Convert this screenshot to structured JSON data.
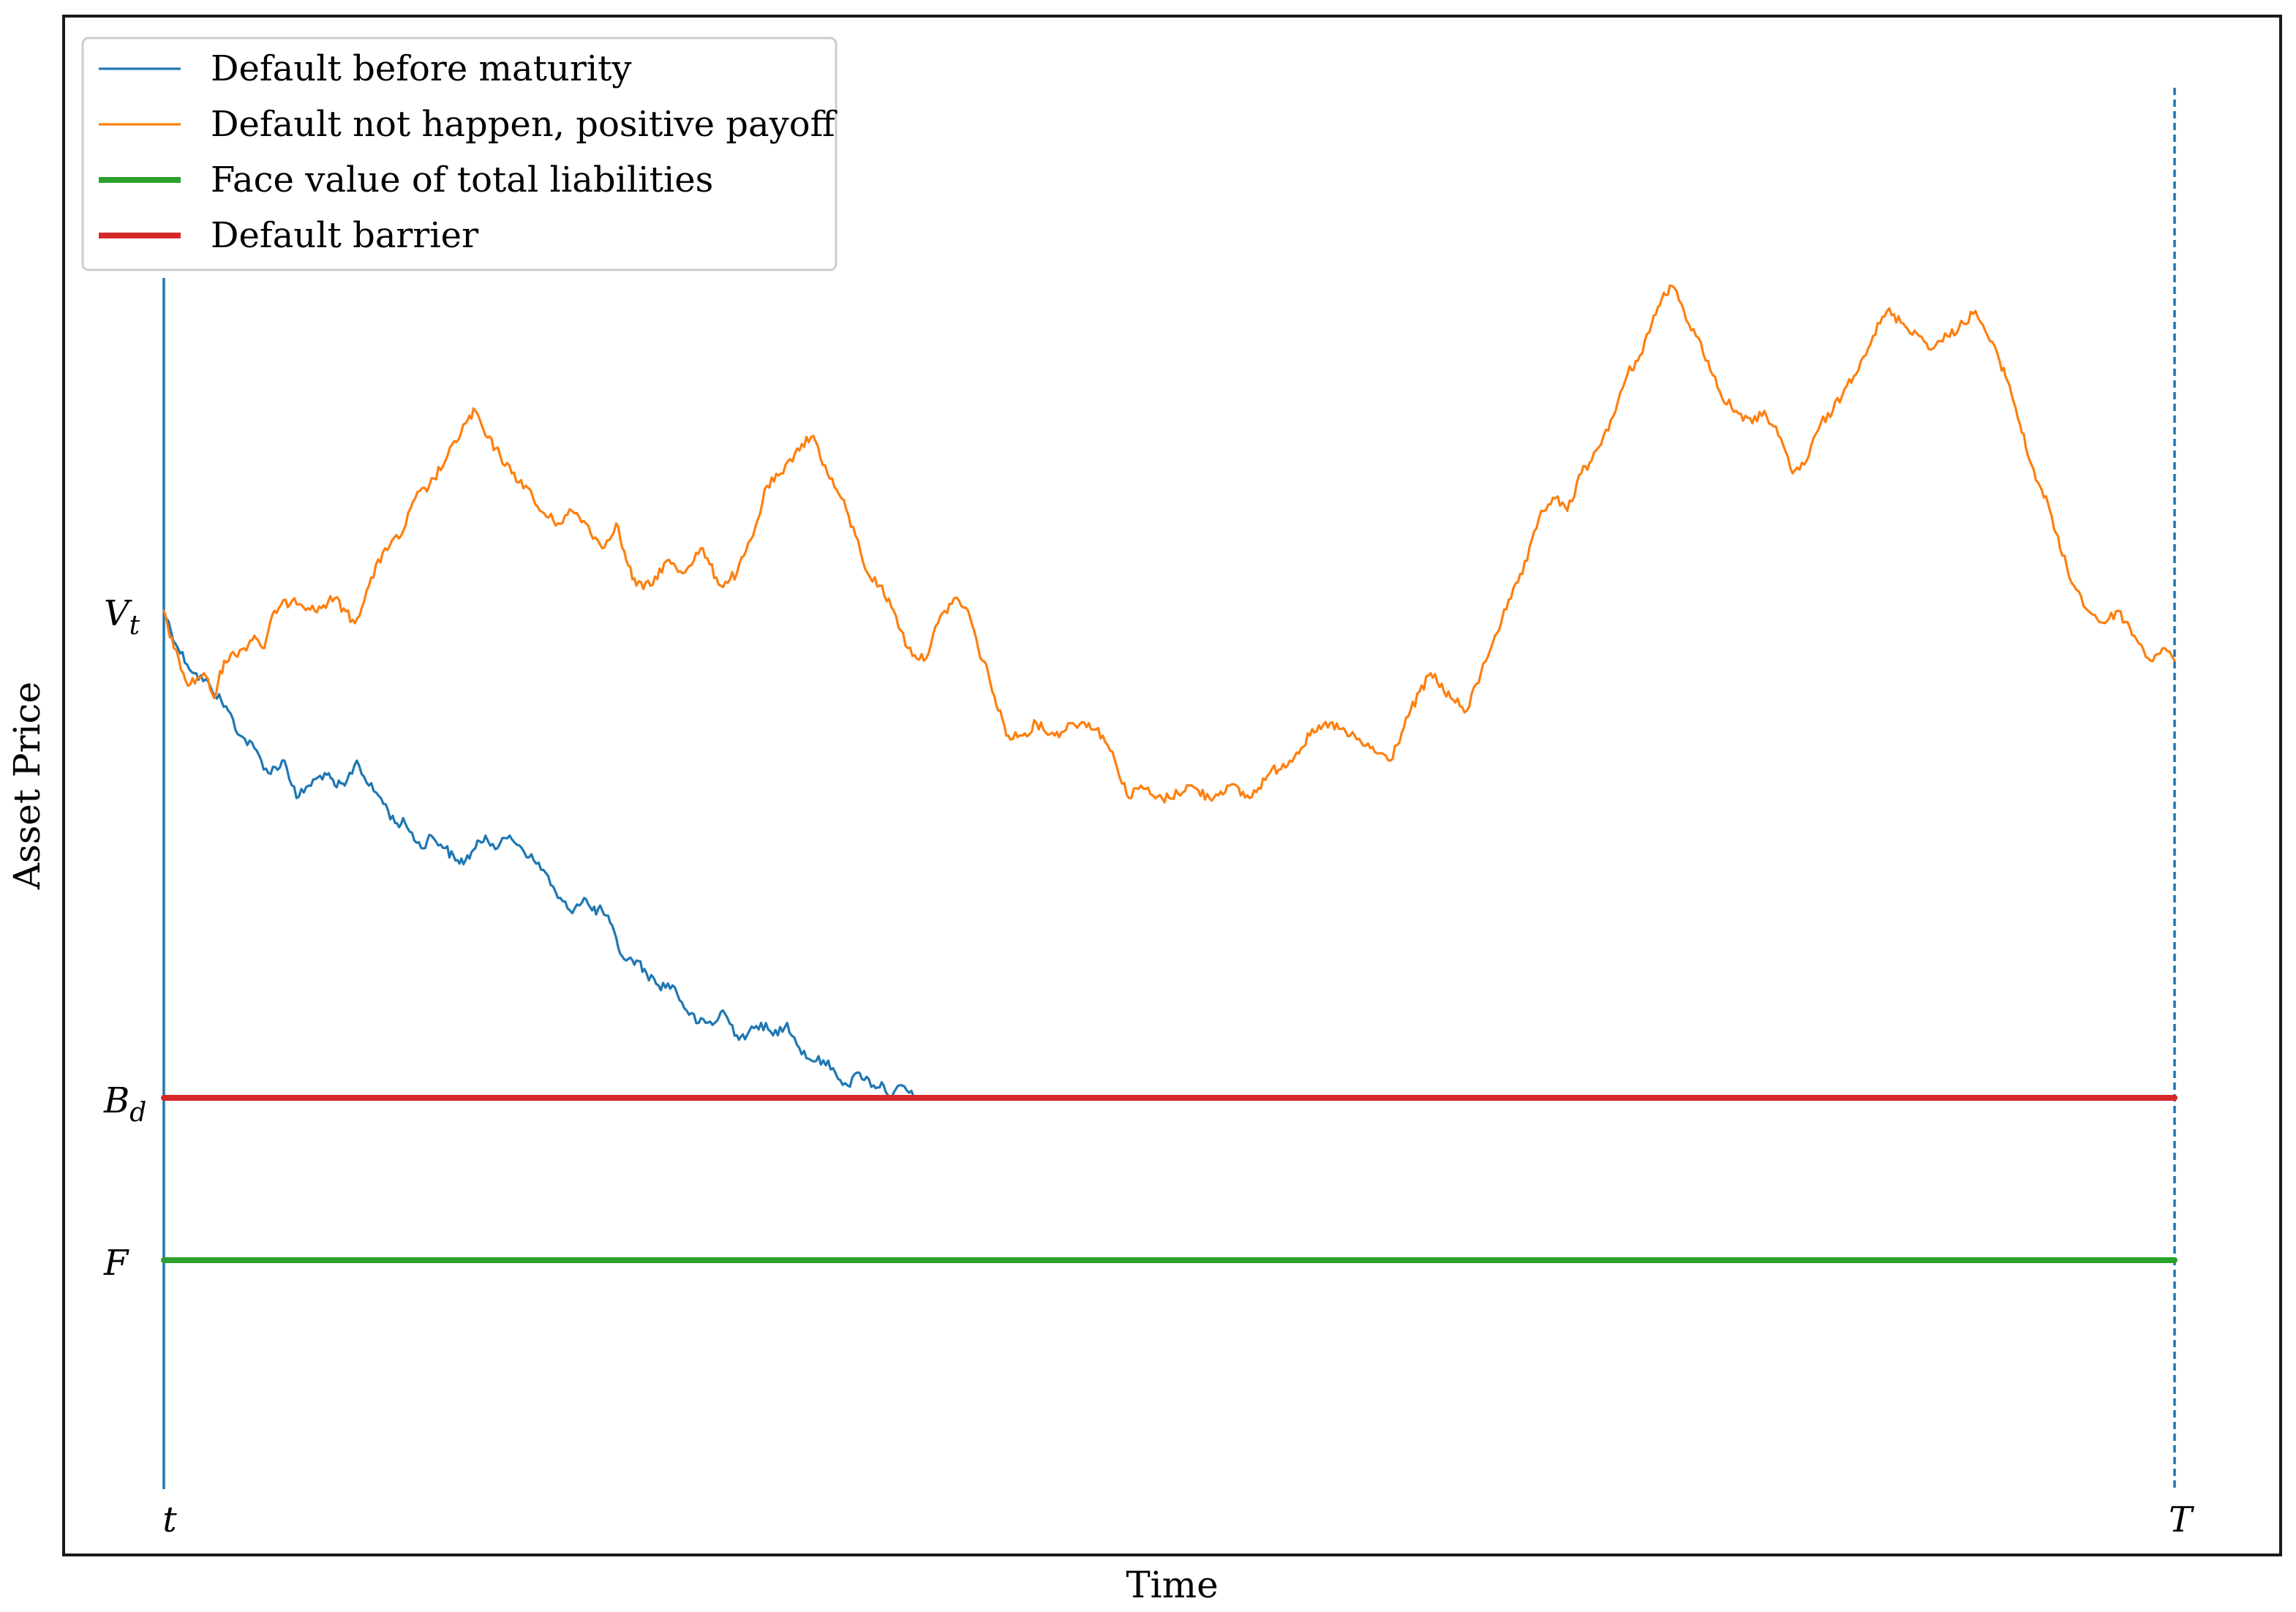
{
  "chart_data": {
    "type": "line",
    "title": "",
    "xlabel": "Time",
    "ylabel": "Asset Price",
    "xlim": [
      0,
      100
    ],
    "ylim": [
      0,
      100
    ],
    "grid": false,
    "legend_position": "top-left",
    "x_ticks": [
      {
        "value": 0,
        "label": "t"
      },
      {
        "value": 100,
        "label": "T"
      }
    ],
    "y_ticks": [
      {
        "value": 66,
        "label": "V",
        "sub": "t"
      },
      {
        "value": 27,
        "label": "B",
        "sub": "d"
      },
      {
        "value": 14,
        "label": "F",
        "sub": ""
      }
    ],
    "series": [
      {
        "name": "Default before maturity",
        "color": "#1f77b4",
        "style": "thin",
        "points": [
          [
            0,
            66
          ],
          [
            0.7,
            63
          ],
          [
            1.5,
            61
          ],
          [
            2.3,
            60
          ],
          [
            3.2,
            58
          ],
          [
            3.8,
            56
          ],
          [
            4.5,
            55
          ],
          [
            5.2,
            53
          ],
          [
            6,
            54
          ],
          [
            6.6,
            51
          ],
          [
            7.2,
            52
          ],
          [
            8,
            53
          ],
          [
            8.5,
            52
          ],
          [
            9,
            52
          ],
          [
            9.6,
            54
          ],
          [
            10.2,
            52
          ],
          [
            10.8,
            51
          ],
          [
            11.5,
            49
          ],
          [
            12,
            49
          ],
          [
            12.8,
            47
          ],
          [
            13.3,
            48
          ],
          [
            14,
            47
          ],
          [
            14.5,
            46
          ],
          [
            15,
            46
          ],
          [
            15.5,
            47
          ],
          [
            16,
            48
          ],
          [
            16.6,
            47
          ],
          [
            17.2,
            48
          ],
          [
            17.8,
            47
          ],
          [
            18.4,
            46
          ],
          [
            19,
            45
          ],
          [
            19.6,
            43
          ],
          [
            20.2,
            42
          ],
          [
            20.9,
            43
          ],
          [
            21.3,
            42
          ],
          [
            21.8,
            42
          ],
          [
            22.2,
            41
          ],
          [
            22.6,
            39
          ],
          [
            23,
            38
          ],
          [
            23.5,
            38
          ],
          [
            24,
            37
          ],
          [
            24.6,
            36
          ],
          [
            25.3,
            36
          ],
          [
            26,
            34
          ],
          [
            26.6,
            33
          ],
          [
            27.4,
            33
          ],
          [
            27.8,
            34
          ],
          [
            28.5,
            32
          ],
          [
            29,
            32
          ],
          [
            29.7,
            33
          ],
          [
            30.3,
            32
          ],
          [
            31,
            33
          ],
          [
            31.6,
            31
          ],
          [
            32.2,
            30
          ],
          [
            32.8,
            30
          ],
          [
            33.4,
            29
          ],
          [
            34,
            28
          ],
          [
            34.6,
            29
          ],
          [
            35.3,
            28
          ],
          [
            35.8,
            28
          ],
          [
            36.2,
            27
          ],
          [
            36.7,
            28
          ],
          [
            37.3,
            27
          ]
        ]
      },
      {
        "name": "Default not happen, positive payoff",
        "color": "#ff7f0e",
        "style": "thin",
        "points": [
          [
            0,
            66
          ],
          [
            0.5,
            63
          ],
          [
            1.2,
            60
          ],
          [
            2,
            61
          ],
          [
            2.5,
            59
          ],
          [
            3,
            62
          ],
          [
            4,
            63
          ],
          [
            4.5,
            64
          ],
          [
            5,
            63
          ],
          [
            5.5,
            66
          ],
          [
            6.5,
            67
          ],
          [
            7.5,
            66
          ],
          [
            8.5,
            67
          ],
          [
            9.5,
            65
          ],
          [
            10.2,
            68
          ],
          [
            11,
            71
          ],
          [
            11.8,
            72
          ],
          [
            12.5,
            75
          ],
          [
            13.2,
            76
          ],
          [
            14,
            78
          ],
          [
            15,
            81
          ],
          [
            15.5,
            82
          ],
          [
            16,
            80
          ],
          [
            16.5,
            79
          ],
          [
            17.3,
            77
          ],
          [
            18,
            76
          ],
          [
            18.7,
            74
          ],
          [
            19.6,
            73
          ],
          [
            20.3,
            74
          ],
          [
            21,
            73
          ],
          [
            21.8,
            71
          ],
          [
            22.5,
            73
          ],
          [
            23,
            70
          ],
          [
            23.5,
            68
          ],
          [
            24.2,
            68
          ],
          [
            25,
            70
          ],
          [
            25.8,
            69
          ],
          [
            26.7,
            71
          ],
          [
            27.7,
            68
          ],
          [
            28.5,
            69
          ],
          [
            29.3,
            72
          ],
          [
            30,
            76
          ],
          [
            30.8,
            77
          ],
          [
            31.5,
            79
          ],
          [
            32.3,
            80
          ],
          [
            33,
            77
          ],
          [
            33.7,
            75
          ],
          [
            34.4,
            72
          ],
          [
            35,
            69
          ],
          [
            35.6,
            68
          ],
          [
            36.3,
            66
          ],
          [
            37,
            63
          ],
          [
            37.8,
            62
          ],
          [
            38.5,
            65
          ],
          [
            39.3,
            67
          ],
          [
            40,
            66
          ],
          [
            40.5,
            63
          ],
          [
            41,
            61
          ],
          [
            41.5,
            58
          ],
          [
            42,
            56
          ],
          [
            42.7,
            56
          ],
          [
            43.4,
            57
          ],
          [
            44.3,
            56
          ],
          [
            45.2,
            57
          ],
          [
            46,
            57
          ],
          [
            46.7,
            56
          ],
          [
            47.3,
            54
          ],
          [
            48,
            51
          ],
          [
            48.6,
            52
          ],
          [
            49.3,
            51
          ],
          [
            50,
            51
          ],
          [
            51,
            52
          ],
          [
            52,
            51
          ],
          [
            53,
            52
          ],
          [
            54,
            51
          ],
          [
            55,
            53
          ],
          [
            56,
            54
          ],
          [
            57,
            56
          ],
          [
            58,
            57
          ],
          [
            59,
            56
          ],
          [
            60,
            55
          ],
          [
            61,
            54
          ],
          [
            62,
            58
          ],
          [
            63,
            61
          ],
          [
            64,
            59
          ],
          [
            64.8,
            58
          ],
          [
            65.5,
            61
          ],
          [
            66.2,
            64
          ],
          [
            67,
            67
          ],
          [
            67.8,
            70
          ],
          [
            68.5,
            74
          ],
          [
            69.2,
            75
          ],
          [
            69.8,
            74
          ],
          [
            70.5,
            77
          ],
          [
            71,
            78
          ],
          [
            71.6,
            80
          ],
          [
            72.2,
            82
          ],
          [
            72.8,
            85
          ],
          [
            73.3,
            86
          ],
          [
            74,
            89
          ],
          [
            74.5,
            91
          ],
          [
            75,
            92
          ],
          [
            75.6,
            90
          ],
          [
            76.2,
            88
          ],
          [
            76.8,
            86
          ],
          [
            77.5,
            83
          ],
          [
            78.2,
            82
          ],
          [
            79,
            81
          ],
          [
            79.6,
            82
          ],
          [
            80.3,
            80
          ],
          [
            81,
            77
          ],
          [
            81.7,
            78
          ],
          [
            82.4,
            81
          ],
          [
            83,
            82
          ],
          [
            83.7,
            84
          ],
          [
            84.4,
            86
          ],
          [
            85,
            88
          ],
          [
            85.7,
            90
          ],
          [
            86.5,
            89
          ],
          [
            87.3,
            88
          ],
          [
            88,
            87
          ],
          [
            88.7,
            88
          ],
          [
            89.5,
            89
          ],
          [
            90.1,
            90
          ],
          [
            90.7,
            88
          ],
          [
            91.3,
            86
          ],
          [
            91.8,
            84
          ],
          [
            92.3,
            81
          ],
          [
            92.8,
            78
          ],
          [
            93.3,
            76
          ],
          [
            93.8,
            74
          ],
          [
            94.3,
            71
          ],
          [
            95,
            68
          ],
          [
            95.7,
            66
          ],
          [
            96.5,
            65
          ],
          [
            97.2,
            66
          ],
          [
            98,
            64
          ],
          [
            98.8,
            62
          ],
          [
            99.4,
            63
          ],
          [
            100,
            62
          ]
        ]
      },
      {
        "name": "Face value of total liabilities",
        "color": "#2ca02c",
        "style": "thick",
        "points": [
          [
            0,
            14
          ],
          [
            100,
            14
          ]
        ]
      },
      {
        "name": "Default barrier",
        "color": "#d62728",
        "style": "thick",
        "points": [
          [
            0,
            27
          ],
          [
            100,
            27
          ]
        ]
      }
    ],
    "reference_lines": [
      {
        "type": "vertical",
        "x": 0,
        "style": "solid",
        "color": "#1f77b4"
      },
      {
        "type": "vertical",
        "x": 100,
        "style": "dashed",
        "color": "#1f77b4"
      }
    ]
  }
}
